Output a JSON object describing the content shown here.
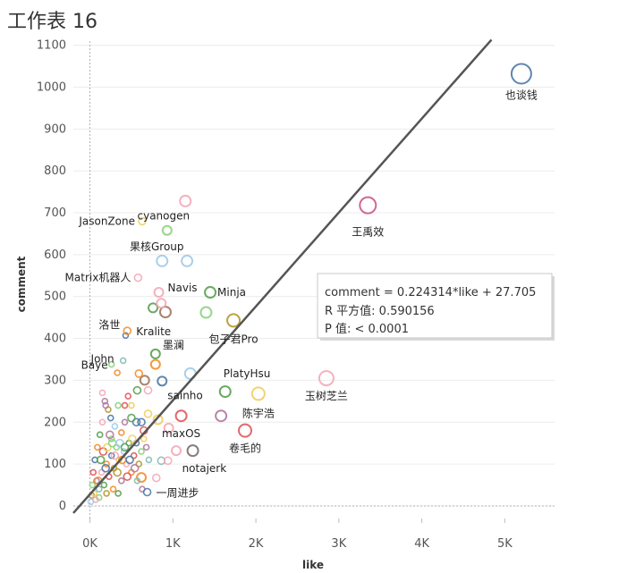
{
  "sheet": {
    "title": "工作表 16"
  },
  "chart_data": {
    "type": "scatter",
    "title": "工作表 16",
    "xlabel": "like",
    "ylabel": "comment",
    "xlim": [
      -200,
      5600
    ],
    "ylim": [
      -30,
      1110
    ],
    "x_ticks": [
      {
        "v": 0,
        "label": "0K"
      },
      {
        "v": 1000,
        "label": "1K"
      },
      {
        "v": 2000,
        "label": "2K"
      },
      {
        "v": 3000,
        "label": "3K"
      },
      {
        "v": 4000,
        "label": "4K"
      },
      {
        "v": 5000,
        "label": "5K"
      }
    ],
    "y_ticks": [
      0,
      100,
      200,
      300,
      400,
      500,
      600,
      700,
      800,
      900,
      1000,
      1100
    ],
    "trend_line": {
      "slope": 0.224314,
      "intercept": 27.705,
      "x_range": [
        -200,
        4840
      ]
    },
    "trend_info": {
      "equation": "comment = 0.224314*like + 27.705",
      "r_squared": "R 平方值: 0.590156",
      "p_value": "P 值: < 0.0001"
    },
    "labeled_points": [
      {
        "name": "也谈钱",
        "x": 5200,
        "y": 1032,
        "size": 11,
        "color": "#4e79a7"
      },
      {
        "name": "王禹效",
        "x": 3350,
        "y": 718,
        "size": 9,
        "color": "#c85a8a"
      },
      {
        "name": "玉树芝兰",
        "x": 2850,
        "y": 305,
        "size": 8,
        "color": "#f4a8b8"
      },
      {
        "name": "JasonZone",
        "x": 630,
        "y": 680,
        "size": 4,
        "color": "#f1ce63"
      },
      {
        "name": "cyanogen",
        "x": 930,
        "y": 658,
        "size": 5,
        "color": "#8cd17d"
      },
      {
        "name": "果核Group",
        "x": 870,
        "y": 585,
        "size": 6,
        "color": "#a0cbe8"
      },
      {
        "name": "Matrix机器人",
        "x": 580,
        "y": 545,
        "size": 4,
        "color": "#f4a8b8"
      },
      {
        "name": "Navis",
        "x": 830,
        "y": 510,
        "size": 5,
        "color": "#f4a8b8"
      },
      {
        "name": "Minja",
        "x": 1450,
        "y": 510,
        "size": 6,
        "color": "#59a14f"
      },
      {
        "name": "洛世",
        "x": 430,
        "y": 407,
        "size": 3,
        "color": "#4e79a7"
      },
      {
        "name": "Kralite",
        "x": 450,
        "y": 418,
        "size": 4,
        "color": "#f28e2b"
      },
      {
        "name": "包子君Pro",
        "x": 1730,
        "y": 443,
        "size": 7,
        "color": "#b6992d"
      },
      {
        "name": "墨澜",
        "x": 790,
        "y": 363,
        "size": 5,
        "color": "#59a14f"
      },
      {
        "name": "Baye",
        "x": 260,
        "y": 338,
        "size": 3,
        "color": "#8cd17d"
      },
      {
        "name": "John",
        "x": 400,
        "y": 347,
        "size": 3,
        "color": "#86bcb6"
      },
      {
        "name": "PlatyHsu",
        "x": 1630,
        "y": 273,
        "size": 6,
        "color": "#59a14f"
      },
      {
        "name": "sainho",
        "x": 870,
        "y": 298,
        "size": 5,
        "color": "#4e79a7"
      },
      {
        "name": "陈宇浩",
        "x": 2030,
        "y": 268,
        "size": 7,
        "color": "#f1ce63"
      },
      {
        "name": "maxOS",
        "x": 1100,
        "y": 215,
        "size": 6,
        "color": "#e15759"
      },
      {
        "name": "卷毛的",
        "x": 1870,
        "y": 180,
        "size": 7,
        "color": "#e15759"
      },
      {
        "name": "notajerk",
        "x": 1240,
        "y": 132,
        "size": 6,
        "color": "#79706e"
      },
      {
        "name": "一周进步",
        "x": 690,
        "y": 33,
        "size": 4,
        "color": "#4e79a7"
      }
    ],
    "other_points": [
      {
        "x": 1150,
        "y": 728,
        "size": 6,
        "color": "#f4a8b8"
      },
      {
        "x": 1170,
        "y": 585,
        "size": 6,
        "color": "#a0cbe8"
      },
      {
        "x": 910,
        "y": 463,
        "size": 6,
        "color": "#9d7660"
      },
      {
        "x": 760,
        "y": 473,
        "size": 5,
        "color": "#59a14f"
      },
      {
        "x": 860,
        "y": 484,
        "size": 5,
        "color": "#f4a8b8"
      },
      {
        "x": 1400,
        "y": 462,
        "size": 6,
        "color": "#8cd17d"
      },
      {
        "x": 1210,
        "y": 316,
        "size": 6,
        "color": "#a0cbe8"
      },
      {
        "x": 790,
        "y": 338,
        "size": 5,
        "color": "#f28e2b"
      },
      {
        "x": 660,
        "y": 300,
        "size": 5,
        "color": "#9d7660"
      },
      {
        "x": 590,
        "y": 316,
        "size": 4,
        "color": "#f28e2b"
      },
      {
        "x": 700,
        "y": 276,
        "size": 4,
        "color": "#f4a8b8"
      },
      {
        "x": 570,
        "y": 276,
        "size": 4,
        "color": "#59a14f"
      },
      {
        "x": 460,
        "y": 262,
        "size": 3,
        "color": "#e15759"
      },
      {
        "x": 330,
        "y": 318,
        "size": 3,
        "color": "#f28e2b"
      },
      {
        "x": 1580,
        "y": 215,
        "size": 6,
        "color": "#b07aa1"
      },
      {
        "x": 950,
        "y": 186,
        "size": 5,
        "color": "#f4a8b8"
      },
      {
        "x": 820,
        "y": 206,
        "size": 5,
        "color": "#f1ce63"
      },
      {
        "x": 1040,
        "y": 132,
        "size": 5,
        "color": "#f4a8b8"
      },
      {
        "x": 860,
        "y": 108,
        "size": 4,
        "color": "#86bcb6"
      },
      {
        "x": 940,
        "y": 108,
        "size": 4,
        "color": "#f4a8b8"
      },
      {
        "x": 800,
        "y": 67,
        "size": 4,
        "color": "#f4a8b8"
      },
      {
        "x": 620,
        "y": 68,
        "size": 5,
        "color": "#f28e2b"
      },
      {
        "x": 620,
        "y": 200,
        "size": 4,
        "color": "#4e79a7"
      },
      {
        "x": 560,
        "y": 200,
        "size": 4,
        "color": "#4e79a7"
      },
      {
        "x": 700,
        "y": 220,
        "size": 4,
        "color": "#f1ce63"
      },
      {
        "x": 650,
        "y": 180,
        "size": 4,
        "color": "#e15759"
      },
      {
        "x": 500,
        "y": 210,
        "size": 4,
        "color": "#59a14f"
      },
      {
        "x": 420,
        "y": 200,
        "size": 3,
        "color": "#b07aa1"
      },
      {
        "x": 380,
        "y": 175,
        "size": 3,
        "color": "#f28e2b"
      },
      {
        "x": 300,
        "y": 190,
        "size": 3,
        "color": "#a0cbe8"
      },
      {
        "x": 260,
        "y": 160,
        "size": 3,
        "color": "#8cd17d"
      },
      {
        "x": 220,
        "y": 230,
        "size": 3,
        "color": "#b6992d"
      },
      {
        "x": 180,
        "y": 250,
        "size": 3,
        "color": "#b07aa1"
      },
      {
        "x": 150,
        "y": 200,
        "size": 3,
        "color": "#f4a8b8"
      },
      {
        "x": 120,
        "y": 170,
        "size": 3,
        "color": "#59a14f"
      },
      {
        "x": 90,
        "y": 140,
        "size": 3,
        "color": "#f28e2b"
      },
      {
        "x": 60,
        "y": 110,
        "size": 3,
        "color": "#4e79a7"
      },
      {
        "x": 40,
        "y": 80,
        "size": 3,
        "color": "#e15759"
      },
      {
        "x": 30,
        "y": 50,
        "size": 3,
        "color": "#8cd17d"
      },
      {
        "x": 20,
        "y": 25,
        "size": 3,
        "color": "#b6992d"
      },
      {
        "x": 50,
        "y": 30,
        "size": 3,
        "color": "#f1ce63"
      },
      {
        "x": 80,
        "y": 60,
        "size": 3,
        "color": "#b07aa1"
      },
      {
        "x": 110,
        "y": 40,
        "size": 3,
        "color": "#86bcb6"
      },
      {
        "x": 140,
        "y": 80,
        "size": 3,
        "color": "#f4a8b8"
      },
      {
        "x": 170,
        "y": 50,
        "size": 3,
        "color": "#59a14f"
      },
      {
        "x": 200,
        "y": 100,
        "size": 3,
        "color": "#f28e2b"
      },
      {
        "x": 230,
        "y": 70,
        "size": 3,
        "color": "#e15759"
      },
      {
        "x": 260,
        "y": 120,
        "size": 3,
        "color": "#4e79a7"
      },
      {
        "x": 290,
        "y": 90,
        "size": 3,
        "color": "#b6992d"
      },
      {
        "x": 320,
        "y": 140,
        "size": 3,
        "color": "#8cd17d"
      },
      {
        "x": 350,
        "y": 110,
        "size": 3,
        "color": "#f1ce63"
      },
      {
        "x": 380,
        "y": 60,
        "size": 3,
        "color": "#b07aa1"
      },
      {
        "x": 410,
        "y": 130,
        "size": 3,
        "color": "#a0cbe8"
      },
      {
        "x": 440,
        "y": 100,
        "size": 3,
        "color": "#f4a8b8"
      },
      {
        "x": 470,
        "y": 150,
        "size": 3,
        "color": "#59a14f"
      },
      {
        "x": 500,
        "y": 80,
        "size": 3,
        "color": "#f28e2b"
      },
      {
        "x": 530,
        "y": 120,
        "size": 3,
        "color": "#e15759"
      },
      {
        "x": 560,
        "y": 150,
        "size": 3,
        "color": "#4e79a7"
      },
      {
        "x": 590,
        "y": 100,
        "size": 3,
        "color": "#b6992d"
      },
      {
        "x": 620,
        "y": 130,
        "size": 3,
        "color": "#8cd17d"
      },
      {
        "x": 650,
        "y": 160,
        "size": 3,
        "color": "#f1ce63"
      },
      {
        "x": 680,
        "y": 140,
        "size": 3,
        "color": "#b07aa1"
      },
      {
        "x": 710,
        "y": 110,
        "size": 3,
        "color": "#86bcb6"
      },
      {
        "x": 100,
        "y": 60,
        "size": 4,
        "color": "#f28e2b"
      },
      {
        "x": 130,
        "y": 110,
        "size": 4,
        "color": "#59a14f"
      },
      {
        "x": 160,
        "y": 130,
        "size": 4,
        "color": "#e15759"
      },
      {
        "x": 190,
        "y": 90,
        "size": 4,
        "color": "#4e79a7"
      },
      {
        "x": 210,
        "y": 140,
        "size": 4,
        "color": "#f1ce63"
      },
      {
        "x": 240,
        "y": 170,
        "size": 4,
        "color": "#b07aa1"
      },
      {
        "x": 270,
        "y": 150,
        "size": 4,
        "color": "#8cd17d"
      },
      {
        "x": 300,
        "y": 120,
        "size": 4,
        "color": "#f4a8b8"
      },
      {
        "x": 330,
        "y": 80,
        "size": 4,
        "color": "#b6992d"
      },
      {
        "x": 360,
        "y": 150,
        "size": 4,
        "color": "#a0cbe8"
      },
      {
        "x": 390,
        "y": 110,
        "size": 4,
        "color": "#f28e2b"
      },
      {
        "x": 420,
        "y": 140,
        "size": 4,
        "color": "#59a14f"
      },
      {
        "x": 450,
        "y": 70,
        "size": 4,
        "color": "#e15759"
      },
      {
        "x": 480,
        "y": 110,
        "size": 4,
        "color": "#4e79a7"
      },
      {
        "x": 510,
        "y": 160,
        "size": 4,
        "color": "#f1ce63"
      },
      {
        "x": 540,
        "y": 90,
        "size": 4,
        "color": "#b07aa1"
      },
      {
        "x": 110,
        "y": 20,
        "size": 3,
        "color": "#8cd17d"
      },
      {
        "x": 70,
        "y": 15,
        "size": 3,
        "color": "#f4a8b8"
      },
      {
        "x": 10,
        "y": 10,
        "size": 3,
        "color": "#a0cbe8"
      },
      {
        "x": 200,
        "y": 30,
        "size": 3,
        "color": "#b6992d"
      },
      {
        "x": 280,
        "y": 40,
        "size": 3,
        "color": "#f28e2b"
      },
      {
        "x": 340,
        "y": 30,
        "size": 3,
        "color": "#59a14f"
      },
      {
        "x": 150,
        "y": 270,
        "size": 3,
        "color": "#f4a8b8"
      },
      {
        "x": 190,
        "y": 240,
        "size": 3,
        "color": "#b07aa1"
      },
      {
        "x": 250,
        "y": 210,
        "size": 3,
        "color": "#4e79a7"
      },
      {
        "x": 420,
        "y": 240,
        "size": 3,
        "color": "#e15759"
      },
      {
        "x": 500,
        "y": 240,
        "size": 3,
        "color": "#f1ce63"
      },
      {
        "x": 340,
        "y": 240,
        "size": 3,
        "color": "#8cd17d"
      },
      {
        "x": 630,
        "y": 40,
        "size": 3,
        "color": "#b07aa1"
      },
      {
        "x": 570,
        "y": 60,
        "size": 3,
        "color": "#86bcb6"
      }
    ]
  }
}
